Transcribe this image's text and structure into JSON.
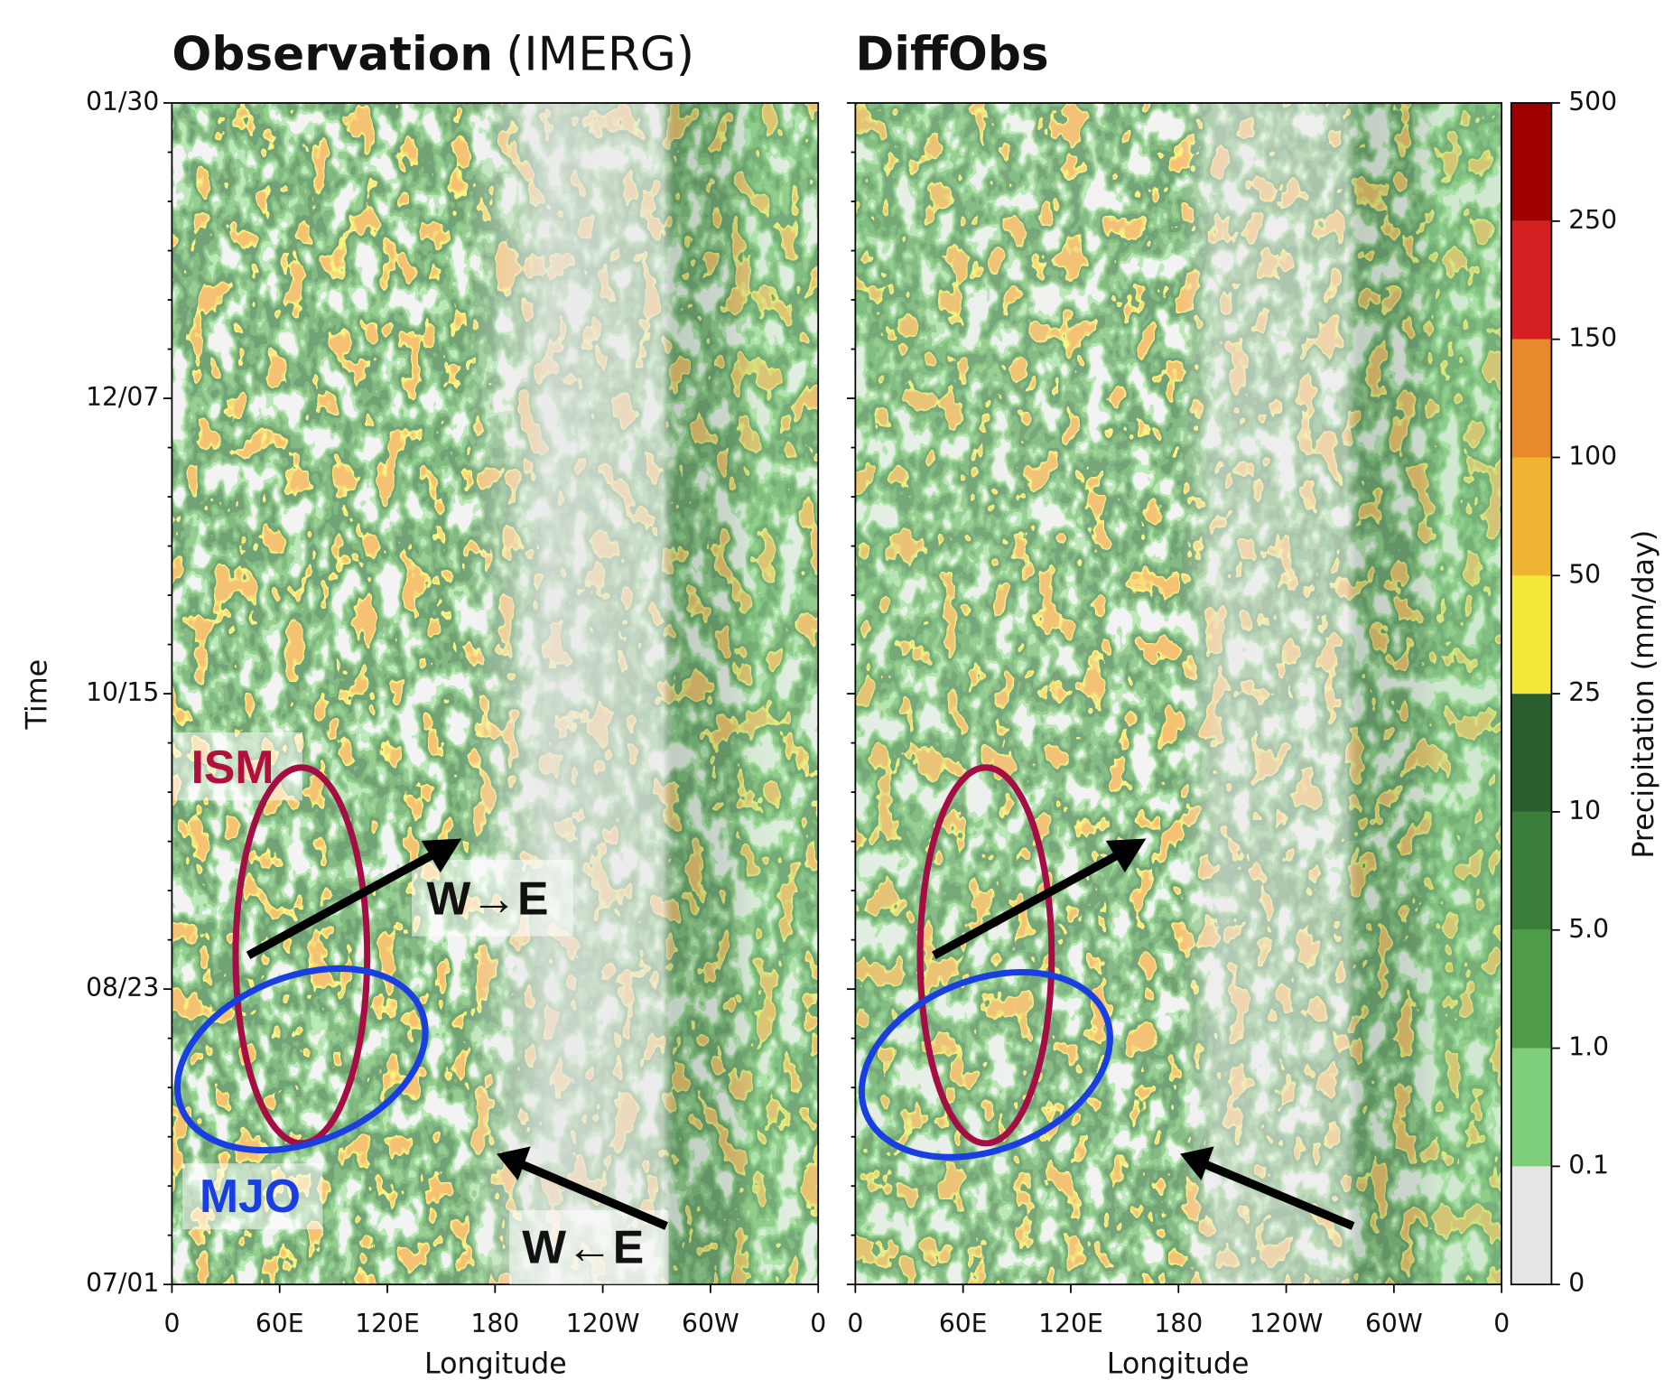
{
  "chart_data": [
    {
      "type": "heatmap",
      "title": "Observation",
      "title_note": "(IMERG)",
      "xlabel": "Longitude",
      "ylabel": "Time",
      "xlim": [
        0,
        360
      ],
      "xticks": [
        0,
        {
          "value": 60,
          "label": "60E"
        },
        {
          "value": 120,
          "label": "120E"
        },
        180,
        {
          "value": 240,
          "label": "120W"
        },
        {
          "value": 300,
          "label": "60W"
        },
        {
          "value": 360,
          "label": "0"
        }
      ],
      "ycategories": [
        "07/01",
        "08/23",
        "10/15",
        "12/07",
        "01/30"
      ],
      "annotations": [
        "ISM",
        "MJO",
        "W→E",
        "W←E"
      ]
    },
    {
      "type": "heatmap",
      "title": "DiffObs",
      "xlabel": "Longitude",
      "xlim": [
        0,
        360
      ],
      "xticks": [
        0,
        {
          "value": 60,
          "label": "60E"
        },
        {
          "value": 120,
          "label": "120E"
        },
        180,
        {
          "value": 240,
          "label": "120W"
        },
        {
          "value": 300,
          "label": "60W"
        },
        {
          "value": 360,
          "label": "0"
        }
      ],
      "colorbar": {
        "label": "Precipitation (mm/day)",
        "levels": [
          0,
          0.1,
          {
            "value": 1,
            "label": "1.0"
          },
          {
            "value": 5,
            "label": "5.0"
          },
          10,
          25,
          50,
          100,
          150,
          250,
          500
        ],
        "colors": [
          "#e5e5e5",
          "#7fce7b",
          "#4e9c48",
          "#3a7e3a",
          "#2b5e2f",
          "#f5e83a",
          "#f0b432",
          "#e8892c",
          "#d42020",
          "#a00000"
        ]
      }
    }
  ]
}
